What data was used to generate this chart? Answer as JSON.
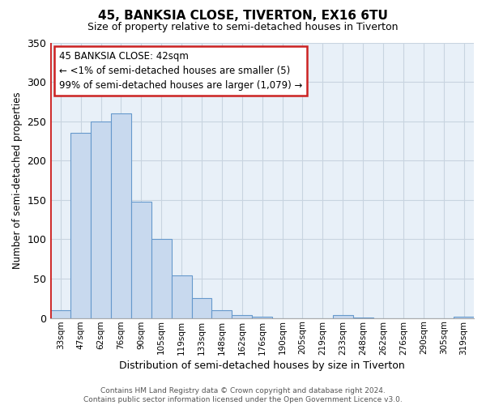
{
  "title": "45, BANKSIA CLOSE, TIVERTON, EX16 6TU",
  "subtitle": "Size of property relative to semi-detached houses in Tiverton",
  "xlabel": "Distribution of semi-detached houses by size in Tiverton",
  "ylabel": "Number of semi-detached properties",
  "footer_line1": "Contains HM Land Registry data © Crown copyright and database right 2024.",
  "footer_line2": "Contains public sector information licensed under the Open Government Licence v3.0.",
  "bar_labels": [
    "33sqm",
    "47sqm",
    "62sqm",
    "76sqm",
    "90sqm",
    "105sqm",
    "119sqm",
    "133sqm",
    "148sqm",
    "162sqm",
    "176sqm",
    "190sqm",
    "205sqm",
    "219sqm",
    "233sqm",
    "248sqm",
    "262sqm",
    "276sqm",
    "290sqm",
    "305sqm",
    "319sqm"
  ],
  "bar_values": [
    10,
    235,
    250,
    260,
    148,
    100,
    54,
    25,
    10,
    4,
    2,
    0,
    0,
    0,
    4,
    1,
    0,
    0,
    0,
    0,
    2
  ],
  "bar_fill_color": "#c8d9ee",
  "bar_edge_color": "#6699cc",
  "bar_bg_color": "#e8f0f8",
  "highlight_color": "#cc2222",
  "highlight_index": 0,
  "ylim": [
    0,
    350
  ],
  "yticks": [
    0,
    50,
    100,
    150,
    200,
    250,
    300,
    350
  ],
  "annotation_title": "45 BANKSIA CLOSE: 42sqm",
  "annotation_line1": "← <1% of semi-detached houses are smaller (5)",
  "annotation_line2": "99% of semi-detached houses are larger (1,079) →",
  "annotation_box_facecolor": "#ffffff",
  "annotation_box_edgecolor": "#cc2222",
  "grid_color": "#c8d4e0",
  "title_fontsize": 11,
  "subtitle_fontsize": 9
}
